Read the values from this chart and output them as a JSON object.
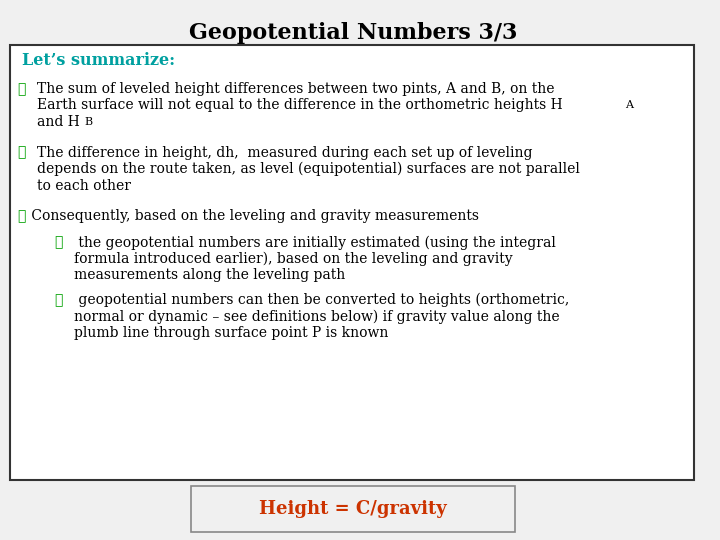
{
  "title": "Geopotential Numbers 3/3",
  "title_fontsize": 16,
  "title_color": "#000000",
  "background_color": "#f0f0f0",
  "box_bg": "#ffffff",
  "box_border": "#333333",
  "summarize_text": "Let’s summarize:",
  "summarize_color": "#00a0a0",
  "summarize_fontsize": 11.5,
  "bullet_arrow": "➤",
  "bullet1_line1": "The sum of leveled height differences between two pints, A and B, on the",
  "bullet1_line2": "Earth surface will not equal to the difference in the orthometric heights H",
  "bullet1_line2_sub": "A",
  "bullet1_line3": "and H",
  "bullet1_line3_sub": "B",
  "bullet2_line1": "The difference in height, dh,  measured during each set up of leveling",
  "bullet2_line2": "depends on the route taken, as level (equipotential) surfaces are not parallel",
  "bullet2_line3": "to each other",
  "bullet3_text": " Consequently, based on the leveling and gravity measurements",
  "sub1_line1": " the geopotential numbers are initially estimated (using the integral",
  "sub1_line2": "formula introduced earlier), based on the leveling and gravity",
  "sub1_line3": "measurements along the leveling path",
  "sub2_line1": " geopotential numbers can then be converted to heights (orthometric,",
  "sub2_line2": "normal or dynamic – see definitions below) if gravity value along the",
  "sub2_line3": "plumb line through surface point P is known",
  "footer_text": "Height = C/gravity",
  "footer_color": "#cc3300",
  "footer_fontsize": 13,
  "footer_box_border": "#888888",
  "body_fontsize": 10,
  "body_color": "#000000",
  "arrow_color": "#00a000"
}
